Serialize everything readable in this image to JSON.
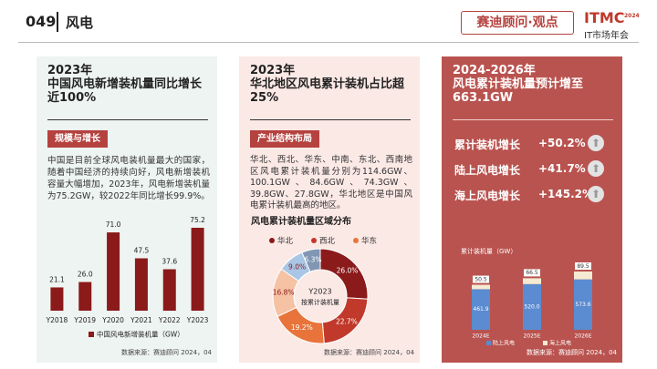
{
  "header": {
    "page_number": "049",
    "section": "风电",
    "brand": "赛迪顾问·观点",
    "logo": "ITMC",
    "logo_year": "2024",
    "event": "IT市场年会"
  },
  "panels": [
    {
      "title": [
        "2023年",
        "中国风电新增装机量同比增长近100%"
      ],
      "tag": "规模与增长",
      "text": "中国是目前全球风电装机量最大的国家，随着中国经济的持续向好，风电新增装机容量大幅增加，2023年，风电新增装机量为75.2GW，较2022年同比增长99.9%。",
      "source": "数据来源：赛迪顾问 2024，04"
    },
    {
      "title": [
        "2023年",
        "华北地区风电累计装机占比超25%"
      ],
      "tag": "产业结构布局",
      "text": "华北、西北、华东、中南、东北、西南地区风电累计装机量分别为114.6GW、100.1GW、84.6GW、74.3GW、39.8GW、27.8GW，华北地区是中国风电累计装机最高的地区。",
      "source": "数据来源：赛迪顾问 2024，04"
    },
    {
      "title": [
        "2024-2026年",
        "风电累计装机量预计增至663.1GW"
      ],
      "stats": [
        {
          "label": "累计装机增长",
          "value": "+50.2%"
        },
        {
          "label": "陆上风电增长",
          "value": "+41.7%"
        },
        {
          "label": "海上风电增长",
          "value": "+145.2%"
        }
      ],
      "source": "数据来源：赛迪顾问 2024，04"
    }
  ],
  "chart_data": [
    {
      "type": "bar",
      "categories": [
        "Y2018",
        "Y2019",
        "Y2020",
        "Y2021",
        "Y2022",
        "Y2023"
      ],
      "series": [
        {
          "name": "中国风电新增装机量（GW）",
          "color": "#8b1a1a",
          "values": [
            21.1,
            26.0,
            71.0,
            47.5,
            37.6,
            75.2
          ],
          "value_labels": [
            "21.1",
            "26.0",
            "71.0",
            "47.5",
            "37.6",
            "75.2"
          ]
        }
      ]
    },
    {
      "type": "pie",
      "title": "风电累计装机量区域分布",
      "center_label": [
        "Y2023",
        "按累计装机量"
      ],
      "categories": [
        "华北",
        "西北",
        "华东",
        null,
        null,
        null
      ],
      "values": [
        26.0,
        22.7,
        19.2,
        16.8,
        9.0,
        6.3
      ],
      "value_labels": [
        "26.0%",
        "22.7%",
        "19.2%",
        "16.8%",
        "9.0%",
        "6.3%"
      ],
      "colors": [
        "#8b1a1a",
        "#c0392b",
        "#e8743b",
        "#f5c2a4",
        "#a9c6e6",
        "#8196b3"
      ]
    },
    {
      "type": "stacked-bar",
      "y_label": "累计装机量（GW）",
      "categories": [
        "2024E",
        "2025E",
        "2026E"
      ],
      "series": [
        {
          "name": "陆上风电",
          "color": "#5b8bd0",
          "values": [
            461.9,
            520.0,
            573.6
          ],
          "value_labels": [
            "461.9",
            "520.0",
            "573.6"
          ]
        },
        {
          "name": "海上风电",
          "color": "#f6ead2",
          "values": [
            50.5,
            66.5,
            89.5
          ],
          "value_labels": [
            "50.5",
            "66.5",
            "89.5"
          ]
        }
      ]
    }
  ]
}
